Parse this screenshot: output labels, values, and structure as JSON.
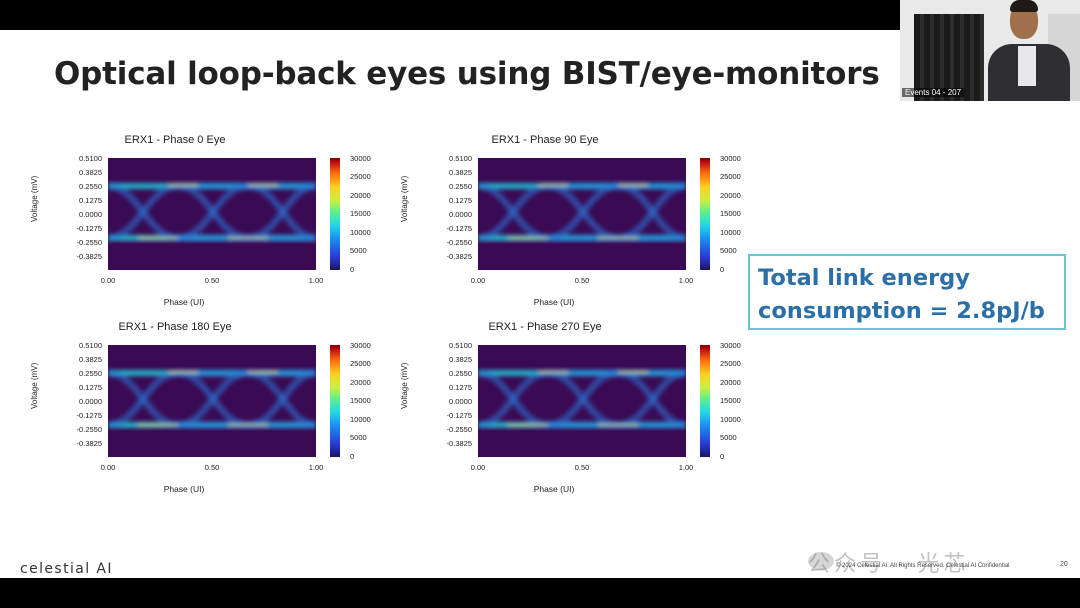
{
  "slide": {
    "title": "Optical loop-back eyes using BIST/eye-monitors",
    "callout_line1": "Total link energy",
    "callout_line2": "consumption = 2.8pJ/b",
    "logo": "celestial AI",
    "footer": "© 2024 Celestial AI. All Rights Reserved. Celestial AI Confidential",
    "page_number": "20",
    "watermark": "公众号 · 光芯"
  },
  "webcam": {
    "label": "Events 04 - 207"
  },
  "plots": {
    "p0": {
      "title": "ERX1 - Phase 0 Eye"
    },
    "p90": {
      "title": "ERX1 - Phase 90 Eye"
    },
    "p180": {
      "title": "ERX1 - Phase 180 Eye"
    },
    "p270": {
      "title": "ERX1 - Phase 270 Eye"
    }
  },
  "axes": {
    "ylabel": "Voltage (mV)",
    "xlabel": "Phase (UI)",
    "yticks": [
      "0.5100",
      "0.3825",
      "0.2550",
      "0.1275",
      "0.0000",
      "-0.1275",
      "-0.2550",
      "-0.3825"
    ],
    "xticks": [
      "0.00",
      "0.50",
      "1.00"
    ],
    "cbar_ticks": [
      "30000",
      "25000",
      "20000",
      "15000",
      "10000",
      "5000",
      "0"
    ]
  },
  "colors": {
    "title": "#222222",
    "callout_text": "#2a6fa8",
    "callout_border": "#6fbfd6",
    "plot_background": "#3b0a54"
  }
}
